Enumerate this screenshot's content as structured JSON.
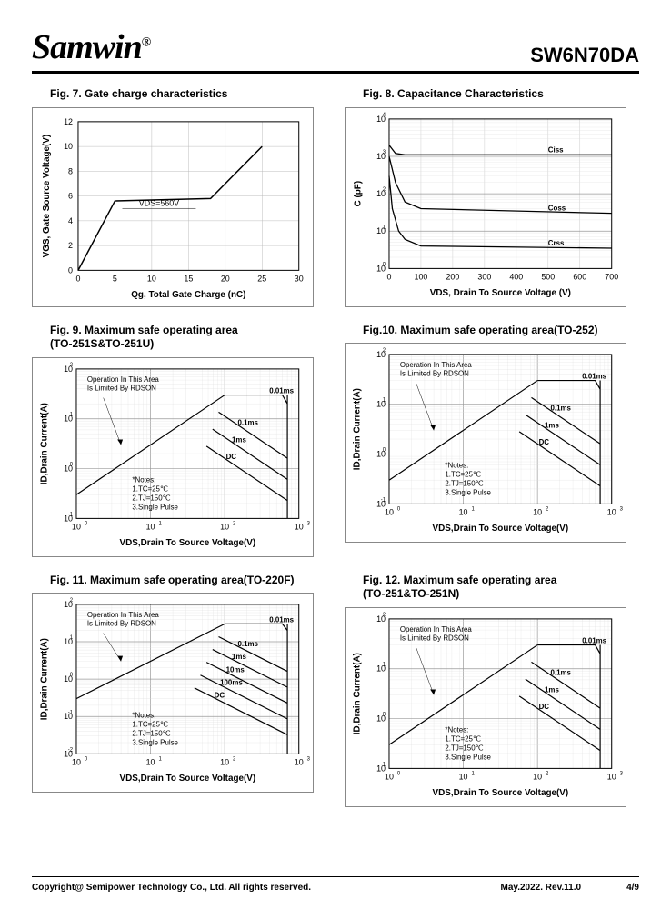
{
  "header": {
    "brand": "Samwin",
    "reg": "®",
    "part": "SW6N70DA"
  },
  "footer": {
    "copyright": "Copyright@ Semipower Technology Co., Ltd. All rights reserved.",
    "date": "May.2022. Rev.11.0",
    "page": "4/9"
  },
  "fig7": {
    "title": "Fig. 7. Gate charge characteristics",
    "xlabel": "Qg, Total Gate Charge (nC)",
    "ylabel": "VGS, Gate Source Voltage(V)",
    "xlim": [
      0,
      30
    ],
    "xtick_step": 5,
    "ylim": [
      0,
      12
    ],
    "ytick_step": 2,
    "annotation": "VDS=560V",
    "line_color": "#000000",
    "points": [
      [
        0,
        0
      ],
      [
        5,
        5.6
      ],
      [
        18,
        5.8
      ],
      [
        25,
        10
      ]
    ]
  },
  "fig8": {
    "title": "Fig. 8. Capacitance Characteristics",
    "xlabel": "VDS, Drain To Source Voltage (V)",
    "ylabel": "C (pF)",
    "xlim": [
      0,
      700
    ],
    "xtick_step": 100,
    "ylog": true,
    "ylim": [
      1,
      10000
    ],
    "curves": [
      {
        "name": "Ciss",
        "pts": [
          [
            0,
            2000
          ],
          [
            20,
            1200
          ],
          [
            50,
            1100
          ],
          [
            700,
            1100
          ]
        ]
      },
      {
        "name": "Coss",
        "pts": [
          [
            0,
            1000
          ],
          [
            20,
            200
          ],
          [
            50,
            60
          ],
          [
            100,
            40
          ],
          [
            700,
            30
          ]
        ]
      },
      {
        "name": "Crss",
        "pts": [
          [
            0,
            300
          ],
          [
            10,
            40
          ],
          [
            30,
            10
          ],
          [
            50,
            6
          ],
          [
            100,
            4
          ],
          [
            700,
            3.5
          ]
        ]
      }
    ]
  },
  "soa_common": {
    "xlabel": "VDS,Drain To Source Voltage(V)",
    "ylabel": "ID,Drain Current(A)",
    "xlim": [
      1,
      1000
    ],
    "ylim": [
      0.1,
      100
    ],
    "op_note": "Operation In This Area\nIs Limited By RDSON",
    "notes": "*Notes:\n1.TC=25℃\n2.TJ=150℃\n3.Single Pulse",
    "curve_labels": [
      "0.01ms",
      "0.1ms",
      "1ms",
      "DC"
    ]
  },
  "fig9": {
    "title": "Fig. 9. Maximum safe operating area\n(TO-251S&TO-251U)"
  },
  "fig10": {
    "title": "Fig.10. Maximum safe operating area(TO-252)"
  },
  "fig11": {
    "title": "Fig. 11. Maximum safe operating area(TO-220F)",
    "curve_labels": [
      "0.01ms",
      "0.1ms",
      "1ms",
      "10ms",
      "100ms",
      "DC"
    ],
    "ylim": [
      0.01,
      100
    ]
  },
  "fig12": {
    "title": "Fig. 12. Maximum safe operating area\n(TO-251&TO-251N)"
  }
}
